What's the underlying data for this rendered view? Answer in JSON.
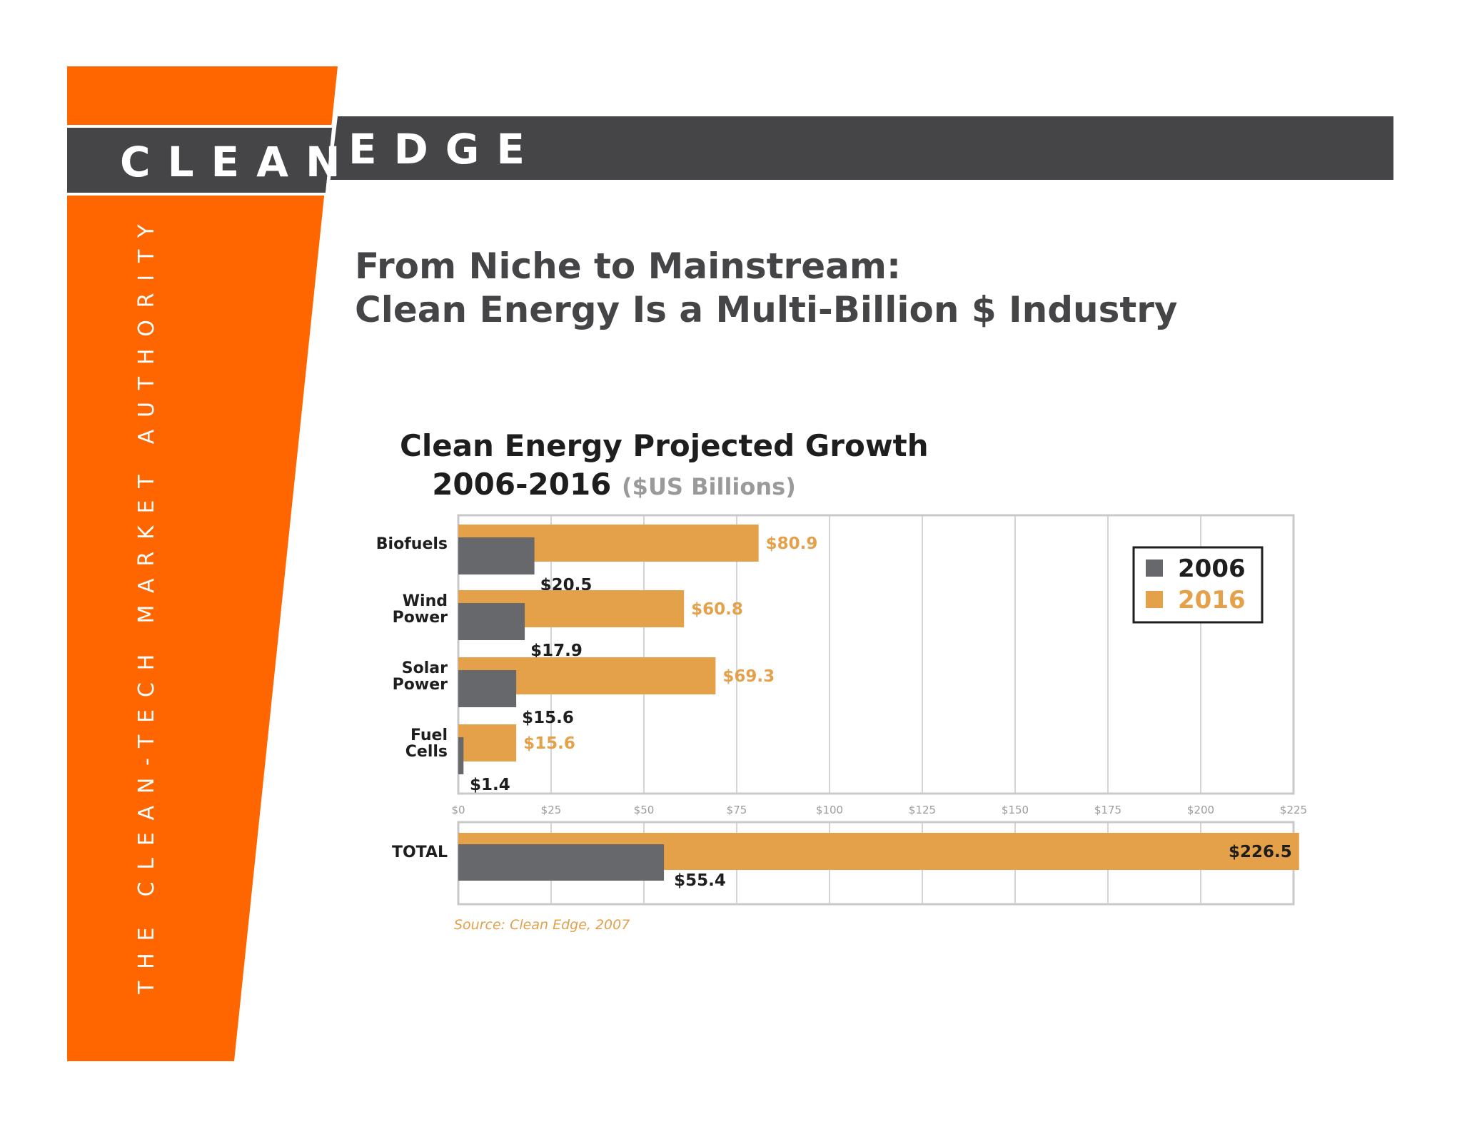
{
  "brand": {
    "logo_left": "CLEAN",
    "logo_right": "EDGE",
    "tagline": "THE CLEAN-TECH MARKET AUTHORITY",
    "colors": {
      "orange": "#ff6600",
      "bar": "#4a4a4d"
    }
  },
  "slide": {
    "title_line1": "From Niche to Mainstream:",
    "title_line2": "Clean Energy Is a Multi-Billion $ Industry"
  },
  "chart_data": {
    "type": "bar",
    "orientation": "horizontal",
    "title": "Clean Energy Projected Growth",
    "subtitle_years": "2006-2016",
    "subtitle_unit": "($US Billions)",
    "categories": [
      "Biofuels",
      "Wind Power",
      "Solar Power",
      "Fuel Cells"
    ],
    "category_labels": [
      [
        "Biofuels"
      ],
      [
        "Wind",
        "Power"
      ],
      [
        "Solar",
        "Power"
      ],
      [
        "Fuel",
        "Cells"
      ]
    ],
    "series": [
      {
        "name": "2006",
        "color": "#67686b",
        "values": [
          20.5,
          17.9,
          15.6,
          1.4
        ],
        "labels": [
          "$20.5",
          "$17.9",
          "$15.6",
          "$1.4"
        ]
      },
      {
        "name": "2016",
        "color": "#e5a04a",
        "values": [
          80.9,
          60.8,
          69.3,
          15.6
        ],
        "labels": [
          "$80.9",
          "$60.8",
          "$69.3",
          "$15.6"
        ]
      }
    ],
    "total": {
      "label": "TOTAL",
      "values": {
        "2006": 55.4,
        "2016": 226.5
      },
      "labels": {
        "2006": "$55.4",
        "2016": "$226.5"
      }
    },
    "x_ticks": [
      0,
      25,
      50,
      75,
      100,
      125,
      150,
      175,
      200,
      225
    ],
    "x_tick_labels": [
      "$0",
      "$25",
      "$50",
      "$75",
      "$100",
      "$125",
      "$150",
      "$175",
      "$200",
      "$225"
    ],
    "xlim": [
      0,
      225
    ],
    "grid": true,
    "legend_position": "top-right",
    "source": "Source: Clean Edge, 2007"
  }
}
